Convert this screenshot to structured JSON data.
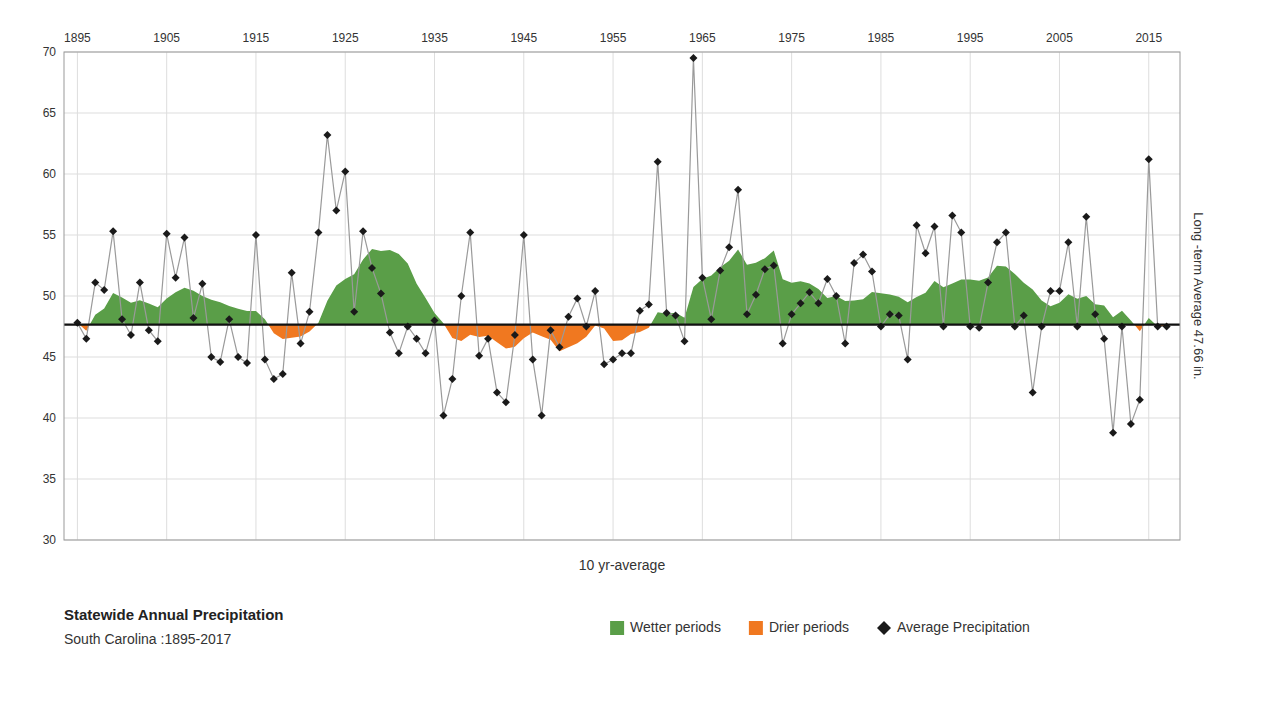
{
  "chart_data": {
    "type": "line",
    "title": "Statewide Annual Precipitation",
    "subtitle": "South Carolina :1895-2017",
    "x": [
      1895,
      1896,
      1897,
      1898,
      1899,
      1900,
      1901,
      1902,
      1903,
      1904,
      1905,
      1906,
      1907,
      1908,
      1909,
      1910,
      1911,
      1912,
      1913,
      1914,
      1915,
      1916,
      1917,
      1918,
      1919,
      1920,
      1921,
      1922,
      1923,
      1924,
      1925,
      1926,
      1927,
      1928,
      1929,
      1930,
      1931,
      1932,
      1933,
      1934,
      1935,
      1936,
      1937,
      1938,
      1939,
      1940,
      1941,
      1942,
      1943,
      1944,
      1945,
      1946,
      1947,
      1948,
      1949,
      1950,
      1951,
      1952,
      1953,
      1954,
      1955,
      1956,
      1957,
      1958,
      1959,
      1960,
      1961,
      1962,
      1963,
      1964,
      1965,
      1966,
      1967,
      1968,
      1969,
      1970,
      1971,
      1972,
      1973,
      1974,
      1975,
      1976,
      1977,
      1978,
      1979,
      1980,
      1981,
      1982,
      1983,
      1984,
      1985,
      1986,
      1987,
      1988,
      1989,
      1990,
      1991,
      1992,
      1993,
      1994,
      1995,
      1996,
      1997,
      1998,
      1999,
      2000,
      2001,
      2002,
      2003,
      2004,
      2005,
      2006,
      2007,
      2008,
      2009,
      2010,
      2011,
      2012,
      2013,
      2014,
      2015,
      2016,
      2017
    ],
    "series": [
      {
        "name": "Average Precipitation",
        "type": "line",
        "color": "#1a1a1a",
        "marker": "diamond",
        "values": [
          47.8,
          46.5,
          51.1,
          50.5,
          55.3,
          48.1,
          46.8,
          51.1,
          47.2,
          46.3,
          55.1,
          51.5,
          54.8,
          48.2,
          51.0,
          45.0,
          44.6,
          48.1,
          45.0,
          44.5,
          55.0,
          44.8,
          43.2,
          43.6,
          51.9,
          46.1,
          48.7,
          55.2,
          63.2,
          57.0,
          60.2,
          48.7,
          55.3,
          52.3,
          50.2,
          47.0,
          45.3,
          47.5,
          46.5,
          45.3,
          48.0,
          40.2,
          43.2,
          50.0,
          55.2,
          45.1,
          46.5,
          42.1,
          41.3,
          46.8,
          55.0,
          44.8,
          40.2,
          47.2,
          45.8,
          48.3,
          49.8,
          47.5,
          50.4,
          44.4,
          44.8,
          45.3,
          45.3,
          48.8,
          49.3,
          61.0,
          48.6,
          48.4,
          46.3,
          69.5,
          51.5,
          48.1,
          52.1,
          54.0,
          58.7,
          48.5,
          50.1,
          52.2,
          52.5,
          46.1,
          48.5,
          49.4,
          50.3,
          49.4,
          51.4,
          50.0,
          46.1,
          52.7,
          53.4,
          52.0,
          47.5,
          48.5,
          48.4,
          44.8,
          55.8,
          53.5,
          55.7,
          47.5,
          56.6,
          55.2,
          47.5,
          47.4,
          51.1,
          54.4,
          55.2,
          47.5,
          48.4,
          42.1,
          47.5,
          50.4,
          50.4,
          54.4,
          47.5,
          56.5,
          48.5,
          46.5,
          38.8,
          47.5,
          39.5,
          41.5,
          61.2,
          47.5,
          47.5
        ]
      }
    ],
    "band": {
      "name": "10 yr-average",
      "values": [
        47.8,
        47.15,
        48.4667,
        48.975,
        50.24,
        49.8833,
        49.4429,
        49.65,
        49.3778,
        49.07,
        49.8,
        50.3,
        50.67,
        50.44,
        50.01,
        49.7,
        49.48,
        49.18,
        48.96,
        48.78,
        48.77,
        48.1,
        46.94,
        46.48,
        46.57,
        46.68,
        47.09,
        47.8,
        49.62,
        50.87,
        51.39,
        51.78,
        52.99,
        53.86,
        53.69,
        53.78,
        53.44,
        52.67,
        51.0,
        49.83,
        48.61,
        47.76,
        46.55,
        46.32,
        46.82,
        46.63,
        46.75,
        46.21,
        45.69,
        45.84,
        46.54,
        47.0,
        46.7,
        46.42,
        45.48,
        45.8,
        46.13,
        46.67,
        47.58,
        47.34,
        46.32,
        46.37,
        46.88,
        47.04,
        47.39,
        48.66,
        48.54,
        48.63,
        48.22,
        50.73,
        51.4,
        51.68,
        52.36,
        52.88,
        53.82,
        52.57,
        52.72,
        53.1,
        53.72,
        51.38,
        51.08,
        51.21,
        51.03,
        50.57,
        49.84,
        49.99,
        49.59,
        49.64,
        49.73,
        50.32,
        50.22,
        50.13,
        49.94,
        49.48,
        49.92,
        50.27,
        51.23,
        50.71,
        51.03,
        51.35,
        51.35,
        51.24,
        51.51,
        52.47,
        52.41,
        51.81,
        51.08,
        50.54,
        49.63,
        49.15,
        49.44,
        50.14,
        49.78,
        49.99,
        49.32,
        49.22,
        48.26,
        48.8,
        48.0,
        47.11,
        48.19,
        47.5,
        47.5
      ],
      "above": {
        "name": "Wetter periods",
        "color": "#5a9e48"
      },
      "below": {
        "name": "Drier periods",
        "color": "#f07820"
      }
    },
    "reference_line": {
      "value": 47.66,
      "label": "Long -term Average 47.66 in.",
      "color": "#111111"
    },
    "xlim": [
      1893.5,
      2018.5
    ],
    "xticks": [
      1895,
      1905,
      1915,
      1925,
      1935,
      1945,
      1955,
      1965,
      1975,
      1985,
      1995,
      2005,
      2015
    ],
    "ylim": [
      30,
      70
    ],
    "yticks": [
      30,
      35,
      40,
      45,
      50,
      55,
      60,
      65,
      70
    ],
    "grid": true,
    "legend": "bottom"
  }
}
